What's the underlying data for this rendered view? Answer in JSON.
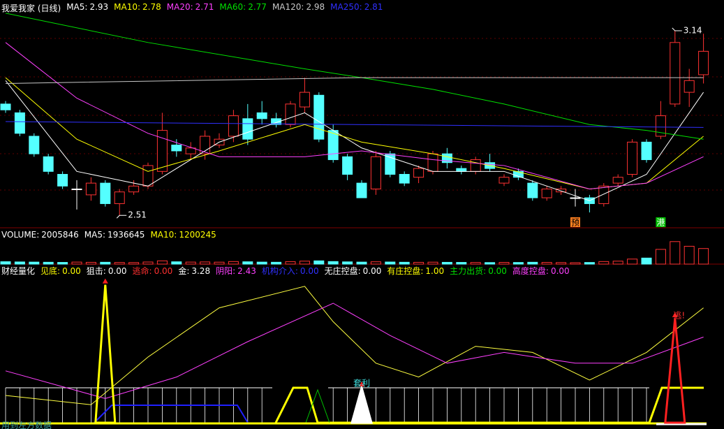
{
  "footer": "用到左方数据",
  "chart_data": [
    {
      "type": "candlestick",
      "title": "我爱我家 (日线)",
      "ylim": [
        2.47,
        3.245
      ],
      "up_color": "#ff3232",
      "down_color": "#54ffff",
      "flat_color": "#ffffff",
      "open": [
        2.89,
        2.86,
        2.78,
        2.71,
        2.65,
        2.6,
        2.58,
        2.62,
        2.55,
        2.59,
        2.61,
        2.66,
        2.75,
        2.72,
        2.72,
        2.75,
        2.78,
        2.84,
        2.86,
        2.84,
        2.82,
        2.88,
        2.92,
        2.8,
        2.71,
        2.62,
        2.6,
        2.72,
        2.65,
        2.64,
        2.66,
        2.72,
        2.67,
        2.66,
        2.69,
        2.62,
        2.66,
        2.62,
        2.57,
        2.59,
        2.57,
        2.57,
        2.55,
        2.62,
        2.65,
        2.76,
        2.78,
        2.89,
        2.93,
        2.99
      ],
      "close": [
        2.87,
        2.79,
        2.72,
        2.66,
        2.61,
        2.6,
        2.62,
        2.55,
        2.59,
        2.61,
        2.68,
        2.8,
        2.73,
        2.74,
        2.78,
        2.77,
        2.85,
        2.77,
        2.84,
        2.82,
        2.89,
        2.93,
        2.77,
        2.7,
        2.65,
        2.57,
        2.71,
        2.65,
        2.62,
        2.67,
        2.72,
        2.69,
        2.66,
        2.7,
        2.67,
        2.64,
        2.64,
        2.57,
        2.6,
        2.6,
        2.57,
        2.55,
        2.61,
        2.64,
        2.76,
        2.7,
        2.85,
        3.1,
        2.97,
        3.07
      ],
      "low": [
        2.86,
        2.78,
        2.71,
        2.65,
        2.6,
        2.53,
        2.56,
        2.54,
        2.51,
        2.58,
        2.6,
        2.65,
        2.71,
        2.7,
        2.7,
        2.74,
        2.76,
        2.75,
        2.82,
        2.81,
        2.81,
        2.86,
        2.76,
        2.69,
        2.63,
        2.57,
        2.58,
        2.64,
        2.61,
        2.62,
        2.65,
        2.67,
        2.65,
        2.65,
        2.66,
        2.61,
        2.63,
        2.56,
        2.56,
        2.58,
        2.54,
        2.52,
        2.54,
        2.61,
        2.64,
        2.69,
        2.77,
        2.88,
        2.88,
        2.96
      ],
      "high": [
        2.9,
        2.87,
        2.79,
        2.72,
        2.66,
        2.63,
        2.64,
        2.63,
        2.6,
        2.63,
        2.69,
        2.86,
        2.77,
        2.76,
        2.8,
        2.79,
        2.87,
        2.89,
        2.9,
        2.86,
        2.9,
        2.98,
        2.93,
        2.82,
        2.72,
        2.63,
        2.73,
        2.73,
        2.66,
        2.68,
        2.73,
        2.74,
        2.68,
        2.71,
        2.72,
        2.65,
        2.67,
        2.63,
        2.61,
        2.61,
        2.6,
        2.58,
        2.62,
        2.65,
        2.77,
        2.77,
        2.9,
        3.14,
        3.01,
        3.13
      ],
      "series": [
        {
          "name": "MA5:",
          "value_label": "2.93",
          "color": "#ffffff",
          "x": [
            0,
            5,
            10,
            15,
            21,
            25,
            30,
            35,
            41,
            45,
            49
          ],
          "values": [
            2.97,
            2.66,
            2.61,
            2.76,
            2.86,
            2.74,
            2.66,
            2.66,
            2.56,
            2.65,
            2.93
          ]
        },
        {
          "name": "MA10:",
          "value_label": "2.78",
          "color": "#ffff00",
          "x": [
            0,
            5,
            10,
            15,
            21,
            25,
            30,
            35,
            41,
            45,
            49
          ],
          "values": [
            2.98,
            2.77,
            2.66,
            2.73,
            2.82,
            2.76,
            2.72,
            2.67,
            2.6,
            2.62,
            2.78
          ]
        },
        {
          "name": "MA20:",
          "value_label": "2.71",
          "color": "#ff40ff",
          "x": [
            0,
            5,
            10,
            15,
            21,
            25,
            30,
            35,
            41,
            45,
            49
          ],
          "values": [
            3.1,
            2.91,
            2.79,
            2.71,
            2.71,
            2.73,
            2.7,
            2.68,
            2.6,
            2.62,
            2.71
          ]
        },
        {
          "name": "MA60:",
          "value_label": "2.77",
          "color": "#00e000",
          "x": [
            0,
            10,
            21,
            25,
            30,
            35,
            41,
            45,
            49
          ],
          "values": [
            3.2,
            3.1,
            3.01,
            2.98,
            2.94,
            2.89,
            2.82,
            2.8,
            2.77
          ]
        },
        {
          "name": "MA120:",
          "value_label": "2.98",
          "color": "#c8c8c8",
          "x": [
            0,
            25,
            49
          ],
          "values": [
            2.96,
            2.98,
            2.98
          ]
        },
        {
          "name": "MA250:",
          "value_label": "2.81",
          "color": "#3030ff",
          "x": [
            0,
            49
          ],
          "values": [
            2.83,
            2.81
          ]
        }
      ],
      "annotations": [
        {
          "text": "3.14",
          "x": 47,
          "value": 3.14
        },
        {
          "text": "2.51",
          "x": 8,
          "value": 2.51
        }
      ],
      "tags": [
        {
          "text": "预",
          "x": 40,
          "color": "#ff8020"
        },
        {
          "text": "港",
          "x": 46,
          "color": "#00c000"
        }
      ]
    },
    {
      "type": "bar",
      "ylim": [
        0,
        3600000
      ],
      "header": [
        {
          "name": "VOLUME:",
          "value": "2005846",
          "color": "#ffffff"
        },
        {
          "name": "MA5:",
          "value": "1936645",
          "color": "#ffffff"
        },
        {
          "name": "MA10:",
          "value": "1200245",
          "color": "#ffff00"
        }
      ],
      "values": [
        310000,
        280000,
        260000,
        240000,
        220000,
        260000,
        230000,
        240000,
        210000,
        200000,
        270000,
        420000,
        300000,
        260000,
        280000,
        250000,
        330000,
        300000,
        260000,
        240000,
        310000,
        380000,
        420000,
        330000,
        290000,
        260000,
        300000,
        270000,
        240000,
        230000,
        250000,
        230000,
        220000,
        210000,
        200000,
        220000,
        210000,
        240000,
        220000,
        200000,
        180000,
        210000,
        330000,
        380000,
        650000,
        780000,
        1900000,
        2900000,
        2300000,
        2005846
      ]
    },
    {
      "type": "line",
      "title": "财经量化",
      "ylim": [
        0,
        100
      ],
      "header": [
        {
          "name": "见底:",
          "value": "0.00",
          "color": "#ffff00"
        },
        {
          "name": "狙击:",
          "value": "0.00",
          "color": "#ffffff"
        },
        {
          "name": "逃命:",
          "value": "0.00",
          "color": "#ff3030"
        },
        {
          "name": "金:",
          "value": "3.28",
          "color": "#ffffff"
        },
        {
          "name": "阴阳:",
          "value": "2.43",
          "color": "#ff40ff"
        },
        {
          "name": "机构介入:",
          "value": "0.00",
          "color": "#3030ff"
        },
        {
          "name": "无庄控盘:",
          "value": "0.00",
          "color": "#ffffff"
        },
        {
          "name": "有庄控盘:",
          "value": "1.00",
          "color": "#ffff00"
        },
        {
          "name": "主力出货:",
          "value": "0.00",
          "color": "#00e000"
        },
        {
          "name": "高度控盘:",
          "value": "0.00",
          "color": "#ff40ff"
        }
      ],
      "series": [
        {
          "color": "#ffff40",
          "x": [
            0,
            6,
            10,
            15,
            21,
            23,
            26,
            29,
            33,
            37,
            41,
            45,
            49
          ],
          "values": [
            20,
            14,
            45,
            77,
            91,
            68,
            41,
            32,
            52,
            48,
            30,
            48,
            77
          ]
        },
        {
          "color": "#ff40ff",
          "x": [
            0,
            7,
            12,
            17,
            23,
            27,
            31,
            35,
            40,
            44,
            49
          ],
          "values": [
            36,
            18,
            32,
            55,
            80,
            59,
            41,
            48,
            41,
            41,
            58
          ]
        }
      ],
      "signals": [
        {
          "x": 7,
          "value": 92,
          "color": "#ffff00"
        },
        {
          "x": 25,
          "value": 25,
          "color": "#ffffff",
          "text": "套利"
        },
        {
          "x": 47,
          "value": 70,
          "color": "#ff2020",
          "text": "逃!"
        }
      ]
    }
  ]
}
